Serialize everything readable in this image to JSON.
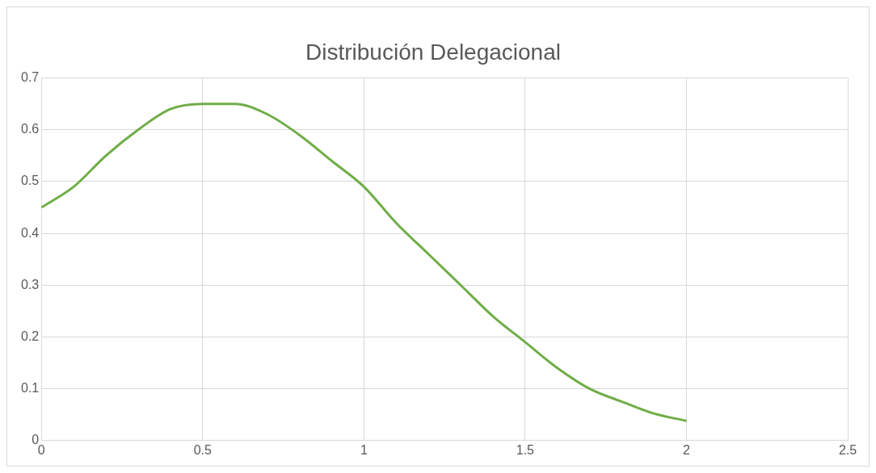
{
  "chart_data": {
    "type": "line",
    "title": "Distribución Delegacional",
    "x": [
      0,
      0.1,
      0.2,
      0.3,
      0.4,
      0.5,
      0.6,
      0.7,
      0.8,
      0.9,
      1,
      1.1,
      1.2,
      1.3,
      1.4,
      1.5,
      1.6,
      1.7,
      1.8,
      1.9,
      2
    ],
    "series": [
      {
        "color": "#70ad47",
        "values": [
          0.45,
          0.49,
          0.55,
          0.6,
          0.64,
          0.65,
          0.65,
          0.63,
          0.59,
          0.54,
          0.49,
          0.42,
          0.36,
          0.3,
          0.24,
          0.19,
          0.14,
          0.1,
          0.075,
          0.052,
          0.038
        ]
      }
    ],
    "xlim": [
      0,
      2.5
    ],
    "xticks": [
      0,
      0.5,
      1,
      1.5,
      2,
      2.5
    ],
    "ylim": [
      0,
      0.7
    ],
    "yticks": [
      0,
      0.1,
      0.2,
      0.3,
      0.4,
      0.5,
      0.6,
      0.7
    ],
    "grid": true,
    "legend": false,
    "marker": "none",
    "line_style": "solid"
  }
}
